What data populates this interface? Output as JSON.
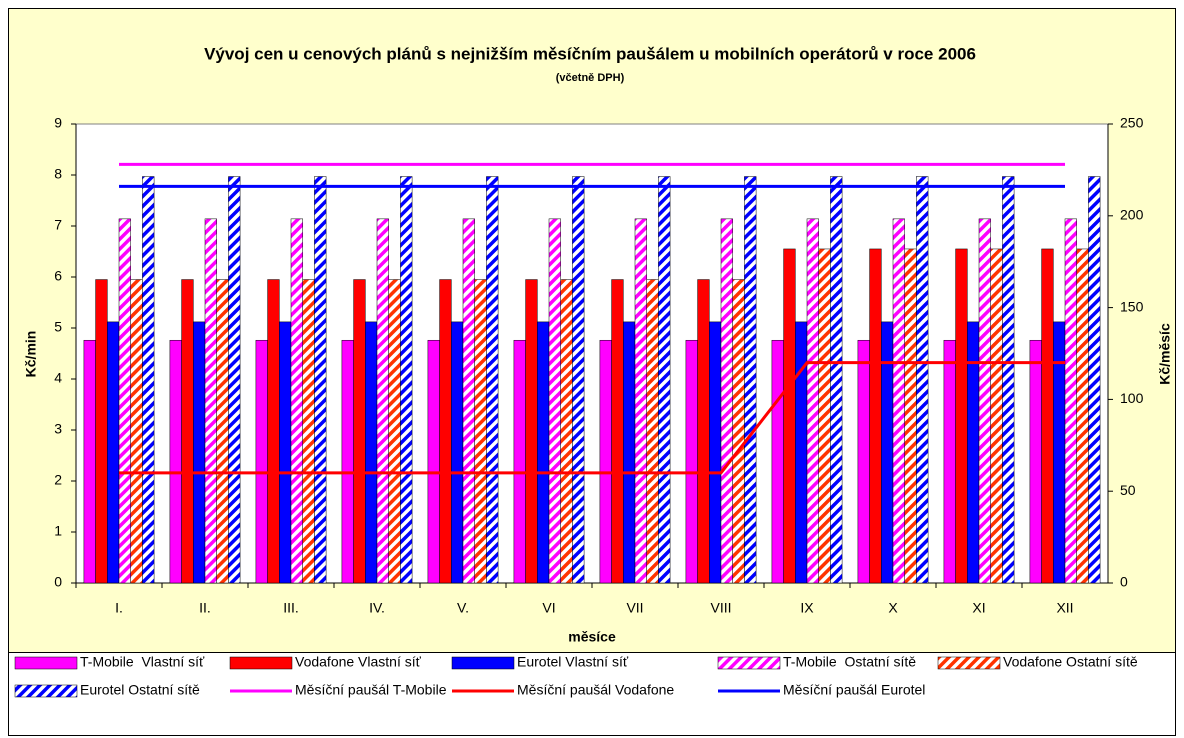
{
  "chart_data": {
    "type": "bar",
    "title": "Vývoj cen u cenových plánů s nejnižším měsíčním paušálem u mobilních operátorů v roce 2006",
    "subtitle": "(včetně DPH)",
    "x_label": "měsíce",
    "y_label": "Kč/min",
    "y2_label": "Kč/měsíc",
    "categories": [
      "I.",
      "II.",
      "III.",
      "IV.",
      "V.",
      "VI",
      "VII",
      "VIII",
      "IX",
      "X",
      "XI",
      "XII"
    ],
    "ylim": [
      0,
      9
    ],
    "yticks": [
      0,
      1,
      2,
      3,
      4,
      5,
      6,
      7,
      8,
      9
    ],
    "y2lim": [
      0,
      250
    ],
    "y2ticks": [
      0,
      50,
      100,
      150,
      200,
      250
    ],
    "grid": false,
    "legend": "bottom",
    "series": [
      {
        "name": "T-Mobile  Vlastní síť",
        "type": "bar",
        "style": "solid",
        "color": "#ff00ff",
        "values": [
          4.76,
          4.76,
          4.76,
          4.76,
          4.76,
          4.76,
          4.76,
          4.76,
          4.76,
          4.76,
          4.76,
          4.76
        ]
      },
      {
        "name": "Vodafone Vlastní síť",
        "type": "bar",
        "style": "solid",
        "color": "#ff0000",
        "values": [
          5.95,
          5.95,
          5.95,
          5.95,
          5.95,
          5.95,
          5.95,
          5.95,
          6.55,
          6.55,
          6.55,
          6.55
        ]
      },
      {
        "name": "Eurotel Vlastní síť",
        "type": "bar",
        "style": "solid",
        "color": "#0000ff",
        "values": [
          5.12,
          5.12,
          5.12,
          5.12,
          5.12,
          5.12,
          5.12,
          5.12,
          5.12,
          5.12,
          5.12,
          5.12
        ]
      },
      {
        "name": "T-Mobile  Ostatní sítě",
        "type": "bar",
        "style": "hatched",
        "color": "#ff00ff",
        "values": [
          7.14,
          7.14,
          7.14,
          7.14,
          7.14,
          7.14,
          7.14,
          7.14,
          7.14,
          7.14,
          7.14,
          7.14
        ]
      },
      {
        "name": "Vodafone Ostatní sítě",
        "type": "bar",
        "style": "hatched",
        "color": "#ff3300",
        "values": [
          5.95,
          5.95,
          5.95,
          5.95,
          5.95,
          5.95,
          5.95,
          5.95,
          6.55,
          6.55,
          6.55,
          6.55
        ]
      },
      {
        "name": "Eurotel Ostatní sítě",
        "type": "bar",
        "style": "hatched",
        "color": "#0000ff",
        "values": [
          7.97,
          7.97,
          7.97,
          7.97,
          7.97,
          7.97,
          7.97,
          7.97,
          7.97,
          7.97,
          7.97,
          7.97
        ]
      },
      {
        "name": "Měsíční paušál T-Mobile",
        "type": "line",
        "axis": "y2",
        "color": "#ff00ff",
        "values": [
          228,
          228,
          228,
          228,
          228,
          228,
          228,
          228,
          228,
          228,
          228,
          228
        ]
      },
      {
        "name": "Měsíční paušál Vodafone",
        "type": "line",
        "axis": "y2",
        "color": "#ff0000",
        "values": [
          60,
          60,
          60,
          60,
          60,
          60,
          60,
          60,
          120,
          120,
          120,
          120
        ]
      },
      {
        "name": "Měsíční paušál Eurotel",
        "type": "line",
        "axis": "y2",
        "color": "#0000ff",
        "values": [
          216,
          216,
          216,
          216,
          216,
          216,
          216,
          216,
          216,
          216,
          216,
          216
        ]
      }
    ]
  }
}
